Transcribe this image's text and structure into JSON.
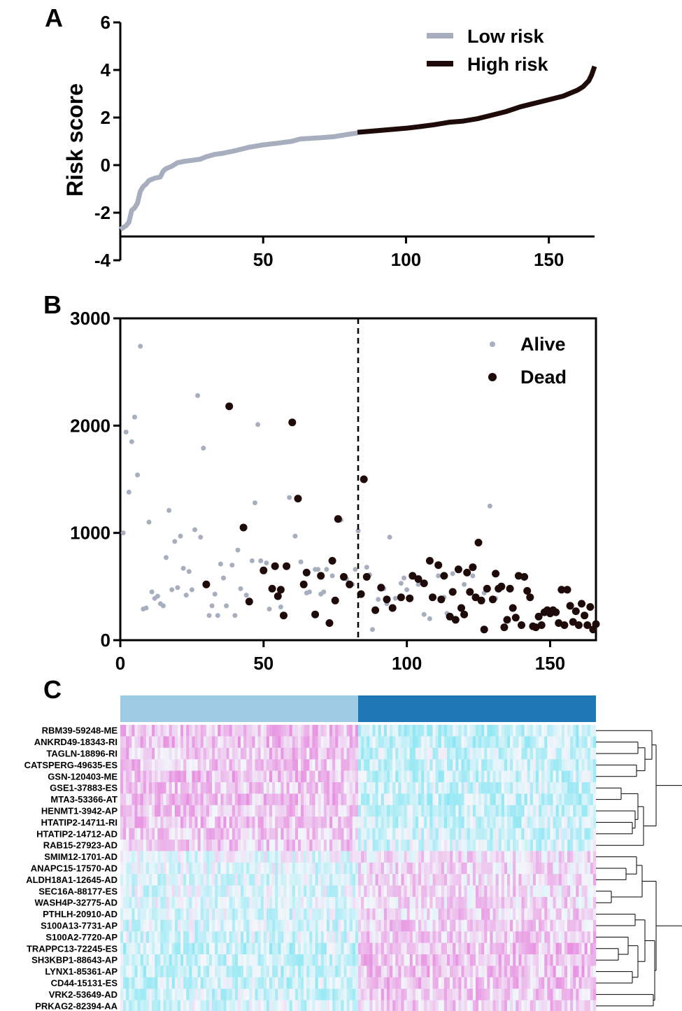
{
  "panels": {
    "A": "A",
    "B": "B",
    "C": "C"
  },
  "chart_data": [
    {
      "type": "line",
      "panel": "A",
      "ylabel": "Risk score",
      "xlim": [
        0,
        166
      ],
      "ylim": [
        -4,
        6
      ],
      "x_ticks": [
        "50",
        "100",
        "150"
      ],
      "x_tick_values": [
        50,
        100,
        150
      ],
      "y_ticks": [
        "-4",
        "-2",
        "0",
        "2",
        "4",
        "6"
      ],
      "y_tick_values": [
        -4,
        -2,
        0,
        2,
        4,
        6
      ],
      "series": [
        {
          "name": "Low risk",
          "color": "#a7afbf",
          "x": [
            0,
            2,
            3,
            4,
            5,
            6,
            7,
            8,
            9,
            10,
            12,
            14,
            15,
            16,
            18,
            20,
            22,
            25,
            28,
            30,
            33,
            36,
            40,
            45,
            50,
            55,
            60,
            63,
            70,
            75,
            80,
            83
          ],
          "y": [
            -2.7,
            -2.55,
            -2.4,
            -1.9,
            -1.8,
            -1.6,
            -1.1,
            -0.9,
            -0.8,
            -0.65,
            -0.55,
            -0.5,
            -0.25,
            -0.15,
            -0.05,
            0.1,
            0.15,
            0.2,
            0.25,
            0.35,
            0.45,
            0.5,
            0.6,
            0.75,
            0.85,
            0.92,
            1.0,
            1.1,
            1.15,
            1.2,
            1.3,
            1.35
          ]
        },
        {
          "name": "High risk",
          "color": "#1e0b09",
          "x": [
            83,
            90,
            100,
            105,
            110,
            115,
            120,
            125,
            130,
            135,
            140,
            145,
            150,
            155,
            160,
            162,
            164,
            165,
            166
          ],
          "y": [
            1.38,
            1.45,
            1.55,
            1.62,
            1.7,
            1.8,
            1.85,
            1.95,
            2.1,
            2.25,
            2.45,
            2.6,
            2.75,
            2.9,
            3.15,
            3.3,
            3.55,
            3.8,
            4.15
          ]
        }
      ],
      "legend_position": "top-right"
    },
    {
      "type": "scatter",
      "panel": "B",
      "xlim": [
        0,
        166
      ],
      "ylim": [
        0,
        3000
      ],
      "x_ticks": [
        "0",
        "50",
        "100",
        "150"
      ],
      "x_tick_values": [
        0,
        50,
        100,
        150
      ],
      "y_ticks": [
        "0",
        "1000",
        "2000",
        "3000"
      ],
      "y_tick_values": [
        0,
        1000,
        2000,
        3000
      ],
      "cutoff_x": 83,
      "legend_position": "top-right",
      "series": [
        {
          "name": "Alive",
          "color": "#a7afbf",
          "marker_radius": 3.5,
          "points": [
            [
              1,
              1000
            ],
            [
              2,
              1940
            ],
            [
              3,
              1380
            ],
            [
              4,
              1850
            ],
            [
              5,
              2080
            ],
            [
              6,
              1540
            ],
            [
              7,
              2740
            ],
            [
              8,
              290
            ],
            [
              9,
              300
            ],
            [
              10,
              1100
            ],
            [
              11,
              450
            ],
            [
              12,
              390
            ],
            [
              13,
              410
            ],
            [
              14,
              340
            ],
            [
              15,
              320
            ],
            [
              16,
              770
            ],
            [
              17,
              1210
            ],
            [
              18,
              470
            ],
            [
              19,
              920
            ],
            [
              20,
              490
            ],
            [
              21,
              970
            ],
            [
              22,
              670
            ],
            [
              23,
              420
            ],
            [
              24,
              640
            ],
            [
              25,
              470
            ],
            [
              26,
              1030
            ],
            [
              27,
              2280
            ],
            [
              28,
              960
            ],
            [
              29,
              1790
            ],
            [
              31,
              230
            ],
            [
              32,
              320
            ],
            [
              33,
              430
            ],
            [
              34,
              230
            ],
            [
              35,
              710
            ],
            [
              36,
              580
            ],
            [
              37,
              320
            ],
            [
              39,
              700
            ],
            [
              40,
              230
            ],
            [
              41,
              840
            ],
            [
              42,
              480
            ],
            [
              44,
              420
            ],
            [
              46,
              740
            ],
            [
              47,
              1280
            ],
            [
              48,
              2010
            ],
            [
              49,
              740
            ],
            [
              51,
              720
            ],
            [
              52,
              290
            ],
            [
              54,
              700
            ],
            [
              56,
              310
            ],
            [
              59,
              1330
            ],
            [
              61,
              970
            ],
            [
              63,
              730
            ],
            [
              65,
              440
            ],
            [
              66,
              450
            ],
            [
              68,
              660
            ],
            [
              69,
              660
            ],
            [
              70,
              430
            ],
            [
              71,
              450
            ],
            [
              72,
              660
            ],
            [
              74,
              600
            ],
            [
              77,
              1120
            ],
            [
              79,
              570
            ],
            [
              81,
              520
            ],
            [
              82,
              660
            ],
            [
              83,
              1020
            ],
            [
              86,
              680
            ],
            [
              87,
              610
            ],
            [
              88,
              100
            ],
            [
              89,
              290
            ],
            [
              90,
              380
            ],
            [
              92,
              480
            ],
            [
              93,
              340
            ],
            [
              94,
              960
            ],
            [
              96,
              390
            ],
            [
              98,
              530
            ],
            [
              99,
              580
            ],
            [
              100,
              470
            ],
            [
              102,
              600
            ],
            [
              104,
              520
            ],
            [
              106,
              240
            ],
            [
              108,
              200
            ],
            [
              111,
              600
            ],
            [
              113,
              400
            ],
            [
              114,
              250
            ],
            [
              116,
              620
            ],
            [
              120,
              520
            ],
            [
              123,
              600
            ],
            [
              127,
              440
            ],
            [
              129,
              1250
            ],
            [
              131,
              390
            ]
          ]
        },
        {
          "name": "Dead",
          "color": "#1e0b09",
          "marker_radius": 5.5,
          "points": [
            [
              30,
              520
            ],
            [
              38,
              2180
            ],
            [
              43,
              1050
            ],
            [
              45,
              360
            ],
            [
              50,
              650
            ],
            [
              53,
              480
            ],
            [
              54,
              690
            ],
            [
              55,
              410
            ],
            [
              56,
              470
            ],
            [
              57,
              230
            ],
            [
              58,
              690
            ],
            [
              60,
              2030
            ],
            [
              62,
              1320
            ],
            [
              64,
              520
            ],
            [
              65,
              630
            ],
            [
              68,
              240
            ],
            [
              70,
              600
            ],
            [
              73,
              160
            ],
            [
              74,
              740
            ],
            [
              75,
              370
            ],
            [
              76,
              1130
            ],
            [
              78,
              590
            ],
            [
              80,
              520
            ],
            [
              84,
              430
            ],
            [
              85,
              1500
            ],
            [
              86,
              590
            ],
            [
              89,
              280
            ],
            [
              91,
              490
            ],
            [
              93,
              380
            ],
            [
              95,
              300
            ],
            [
              98,
              400
            ],
            [
              101,
              390
            ],
            [
              102,
              600
            ],
            [
              104,
              570
            ],
            [
              106,
              530
            ],
            [
              108,
              740
            ],
            [
              109,
              400
            ],
            [
              111,
              700
            ],
            [
              112,
              380
            ],
            [
              113,
              600
            ],
            [
              115,
              220
            ],
            [
              116,
              450
            ],
            [
              117,
              190
            ],
            [
              118,
              660
            ],
            [
              119,
              300
            ],
            [
              120,
              240
            ],
            [
              121,
              630
            ],
            [
              122,
              450
            ],
            [
              123,
              680
            ],
            [
              124,
              400
            ],
            [
              125,
              910
            ],
            [
              126,
              370
            ],
            [
              127,
              100
            ],
            [
              128,
              480
            ],
            [
              130,
              380
            ],
            [
              131,
              620
            ],
            [
              132,
              480
            ],
            [
              133,
              500
            ],
            [
              134,
              120
            ],
            [
              135,
              190
            ],
            [
              136,
              480
            ],
            [
              137,
              300
            ],
            [
              138,
              210
            ],
            [
              139,
              600
            ],
            [
              140,
              140
            ],
            [
              141,
              590
            ],
            [
              142,
              460
            ],
            [
              143,
              400
            ],
            [
              144,
              130
            ],
            [
              145,
              120
            ],
            [
              146,
              220
            ],
            [
              147,
              140
            ],
            [
              148,
              260
            ],
            [
              149,
              280
            ],
            [
              150,
              250
            ],
            [
              151,
              280
            ],
            [
              152,
              260
            ],
            [
              153,
              160
            ],
            [
              154,
              470
            ],
            [
              155,
              140
            ],
            [
              156,
              470
            ],
            [
              157,
              320
            ],
            [
              158,
              170
            ],
            [
              159,
              270
            ],
            [
              160,
              140
            ],
            [
              161,
              340
            ],
            [
              162,
              230
            ],
            [
              163,
              140
            ],
            [
              164,
              310
            ],
            [
              165,
              100
            ],
            [
              166,
              150
            ]
          ]
        }
      ]
    },
    {
      "type": "heatmap",
      "panel": "C",
      "group_bar": [
        {
          "group": "Low risk",
          "color": "#9ccbe3"
        },
        {
          "group": "High risk",
          "color": "#1f78b4"
        }
      ],
      "color_scale": {
        "low": "#62e0f0",
        "mid": "#f3f7fb",
        "high": "#e46fd8"
      },
      "rows": [
        "RBM39-59248-ME",
        "ANKRD49-18343-RI",
        "TAGLN-18896-RI",
        "CATSPERG-49635-ES",
        "GSN-120403-ME",
        "GSE1-37883-ES",
        "MTA3-53366-AT",
        "HENMT1-3942-AP",
        "HTATIP2-14711-RI",
        "HTATIP2-14712-AD",
        "RAB15-27923-AD",
        "SMIM12-1701-AD",
        "ANAPC15-17570-AD",
        "ALDH18A1-12645-AD",
        "SEC16A-88177-ES",
        "WASH4P-32775-AD",
        "PTHLH-20910-AD",
        "S100A13-7731-AP",
        "S100A2-7720-AP",
        "TRAPPC13-72245-ES",
        "SH3KBP1-88643-AP",
        "LYNX1-85361-AP",
        "CD44-15131-ES",
        "VRK2-53649-AD",
        "PRKAG2-82394-AA"
      ],
      "row_trend": [
        1.0,
        1.0,
        0.9,
        0.9,
        1.0,
        0.8,
        1.0,
        0.9,
        0.9,
        0.8,
        0.7,
        -0.4,
        -0.5,
        -0.6,
        -0.5,
        -0.5,
        -0.6,
        -0.7,
        -0.7,
        -1.0,
        -0.9,
        -1.0,
        -0.9,
        -0.8,
        -0.7
      ],
      "n_columns": 166
    }
  ]
}
